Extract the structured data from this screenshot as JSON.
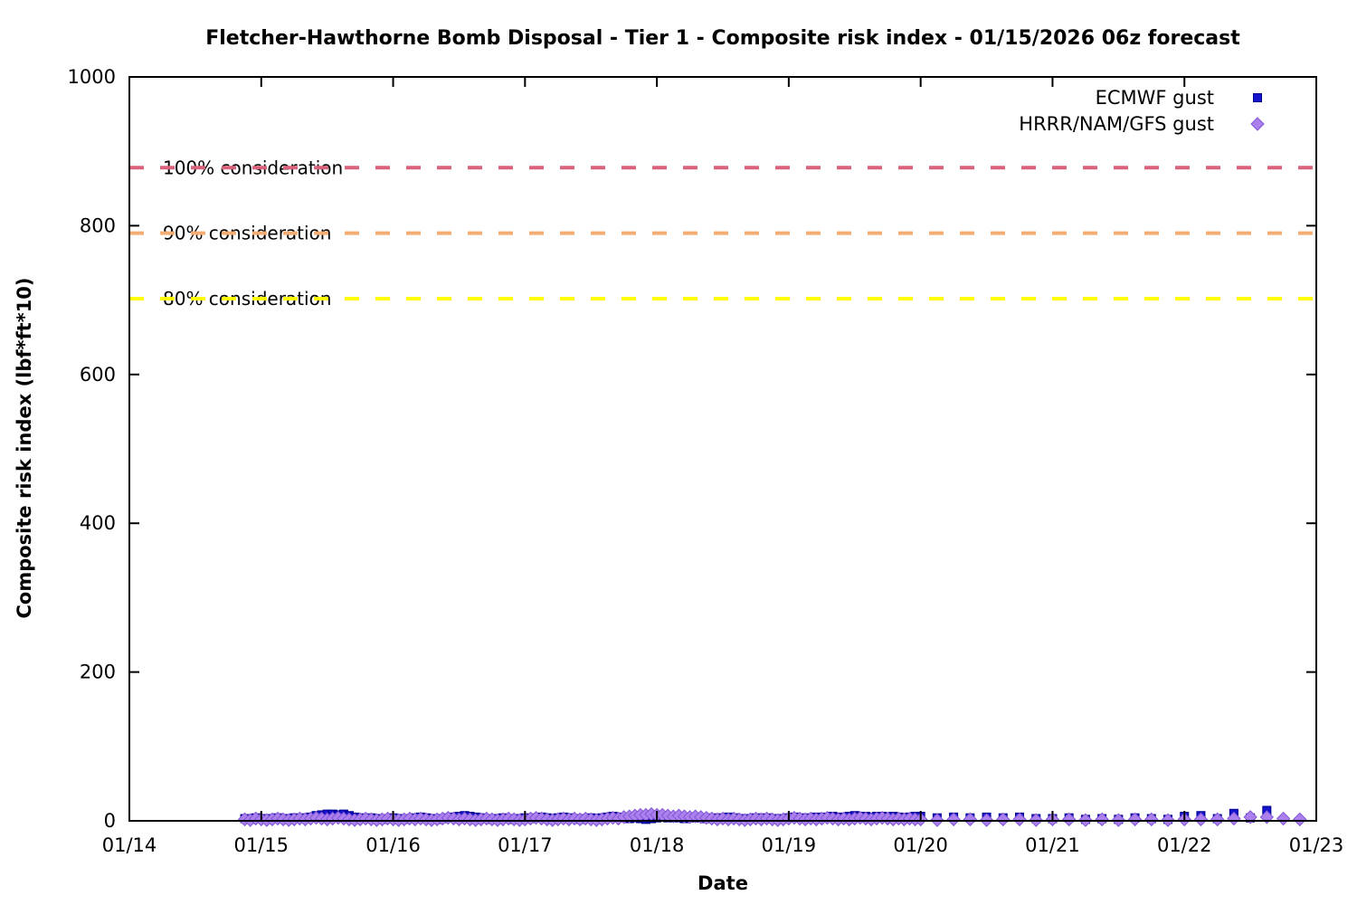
{
  "chart_data": {
    "type": "scatter",
    "title": "Fletcher-Hawthorne Bomb Disposal - Tier 1 - Composite risk index - 01/15/2026 06z forecast",
    "xlabel": "Date",
    "ylabel": "Composite risk index (lbf*ft*10)",
    "xlim": [
      14,
      23
    ],
    "ylim": [
      0,
      1000
    ],
    "x_tick_values": [
      14,
      15,
      16,
      17,
      18,
      19,
      20,
      21,
      22,
      23
    ],
    "x_tick_labels": [
      "01/14",
      "01/15",
      "01/16",
      "01/17",
      "01/18",
      "01/19",
      "01/20",
      "01/21",
      "01/22",
      "01/23"
    ],
    "y_tick_values": [
      0,
      200,
      400,
      600,
      800,
      1000
    ],
    "y_tick_labels": [
      "0",
      "200",
      "400",
      "600",
      "800",
      "1000"
    ],
    "grid": false,
    "legend_position": "top-right-inside",
    "thresholds": [
      {
        "label": "100% consideration",
        "value": 878,
        "color": "#d9627a"
      },
      {
        "label": "90% consideration",
        "value": 790,
        "color": "#f5ad73"
      },
      {
        "label": "80% consideration",
        "value": 702,
        "color": "#ffff00"
      }
    ],
    "series": [
      {
        "name": "ECMWF gust",
        "marker": "square",
        "color": "#1414cc",
        "edge_color": "#00008f",
        "segments": [
          {
            "t_start": 14.875,
            "t_step": 0.0416667,
            "values": [
              3,
              2,
              4,
              3,
              2,
              3,
              4,
              3,
              2,
              4,
              3,
              4,
              5,
              7,
              8,
              9,
              9,
              8,
              9,
              7,
              5,
              4,
              3,
              4,
              3,
              2,
              3,
              4,
              3,
              2,
              3,
              4,
              5,
              4,
              3,
              2,
              3,
              4,
              5,
              6,
              7,
              6,
              5,
              4,
              3,
              2,
              3,
              4,
              3,
              2,
              3,
              4,
              3,
              4,
              5,
              4,
              3,
              4,
              5,
              4,
              3,
              2,
              3,
              4,
              3,
              4,
              5,
              6,
              5,
              4,
              3,
              4,
              3,
              2,
              3,
              4,
              5,
              4,
              5,
              4,
              3,
              4,
              5,
              4,
              3,
              4,
              3,
              4,
              5,
              4,
              3,
              2,
              3,
              4,
              3,
              4,
              3,
              2,
              3,
              4,
              5,
              4,
              3,
              4,
              5,
              4,
              5,
              6,
              5,
              4,
              6,
              7,
              6,
              6,
              5,
              6,
              6,
              5,
              6,
              5,
              4,
              5,
              6
            ]
          },
          {
            "t_start": 20.0,
            "t_step": 0.125,
            "values": [
              6,
              4,
              5,
              4,
              5,
              4,
              5,
              3,
              3,
              4,
              2,
              3,
              2,
              4,
              3,
              2,
              6,
              7,
              3,
              10,
              4,
              14
            ]
          }
        ]
      },
      {
        "name": "HRRR/NAM/GFS gust",
        "marker": "diamond",
        "color": "#ab80ec",
        "edge_color": "#8257d8",
        "segments": [
          {
            "t_start": 14.875,
            "t_step": 0.0416667,
            "values": [
              2,
              1,
              3,
              2,
              1,
              2,
              3,
              2,
              1,
              2,
              3,
              2,
              3,
              4,
              3,
              2,
              3,
              4,
              3,
              2,
              1,
              2,
              3,
              2,
              1,
              2,
              3,
              2,
              1,
              2,
              3,
              2,
              3,
              2,
              1,
              2,
              3,
              4,
              3,
              2,
              3,
              2,
              1,
              2,
              3,
              2,
              1,
              2,
              3,
              2,
              1,
              2,
              3,
              4,
              3,
              2,
              1,
              2,
              3,
              2,
              3,
              2,
              3,
              2,
              1,
              2,
              3,
              4,
              3,
              5,
              6,
              7,
              8,
              8,
              9,
              8,
              8,
              7,
              6,
              7,
              6,
              5,
              6,
              5,
              4,
              3,
              2,
              3,
              2,
              3,
              2,
              1,
              2,
              3,
              2,
              3,
              2,
              1,
              2,
              3,
              4,
              3,
              2,
              3,
              2,
              3,
              4,
              3,
              2,
              3,
              2,
              3,
              4,
              3,
              2,
              3,
              4,
              3,
              2,
              3,
              2,
              3,
              2
            ]
          },
          {
            "t_start": 20.0,
            "t_step": 0.125,
            "values": [
              2,
              1,
              2,
              2,
              1,
              2,
              2,
              1,
              2,
              2,
              1,
              2,
              1,
              2,
              2,
              1,
              2,
              2,
              2,
              3,
              5,
              5,
              3,
              2
            ]
          }
        ]
      }
    ]
  }
}
